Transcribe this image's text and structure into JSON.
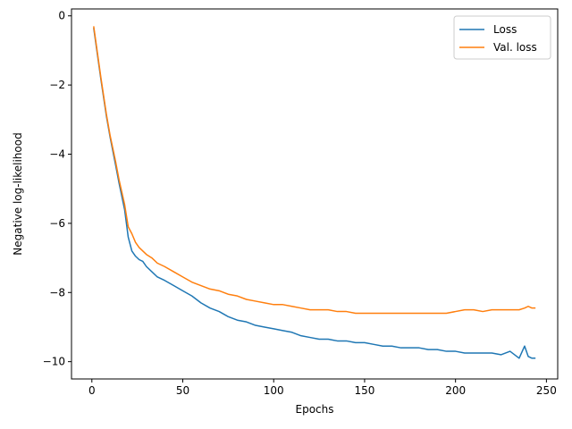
{
  "chart_data": {
    "type": "line",
    "title": "",
    "xlabel": "Epochs",
    "ylabel": "Negative log-likelihood",
    "xlim": [
      -11.2,
      256.2
    ],
    "ylim": [
      -10.5,
      0.2
    ],
    "xticks": [
      0,
      50,
      100,
      150,
      200,
      250
    ],
    "yticks": [
      0,
      -2,
      -4,
      -6,
      -8,
      -10
    ],
    "xtick_labels": [
      "0",
      "50",
      "100",
      "150",
      "200",
      "250"
    ],
    "ytick_labels": [
      "0",
      "−2",
      "−4",
      "−6",
      "−8",
      "−10"
    ],
    "grid": false,
    "legend_position": "top-right",
    "series": [
      {
        "name": "Loss",
        "color": "#1f77b4",
        "x": [
          1,
          3,
          5,
          8,
          10,
          13,
          15,
          18,
          20,
          22,
          24,
          26,
          28,
          30,
          33,
          36,
          40,
          45,
          50,
          55,
          60,
          65,
          70,
          75,
          80,
          85,
          90,
          95,
          100,
          105,
          110,
          115,
          120,
          125,
          130,
          135,
          140,
          145,
          150,
          155,
          160,
          165,
          170,
          175,
          180,
          185,
          190,
          195,
          200,
          205,
          210,
          215,
          220,
          225,
          230,
          235,
          238,
          240,
          242,
          244
        ],
        "y": [
          -0.35,
          -1.1,
          -1.85,
          -2.9,
          -3.5,
          -4.3,
          -4.85,
          -5.6,
          -6.4,
          -6.8,
          -6.95,
          -7.05,
          -7.1,
          -7.25,
          -7.4,
          -7.55,
          -7.65,
          -7.8,
          -7.95,
          -8.1,
          -8.3,
          -8.45,
          -8.55,
          -8.7,
          -8.8,
          -8.85,
          -8.95,
          -9.0,
          -9.05,
          -9.1,
          -9.15,
          -9.25,
          -9.3,
          -9.35,
          -9.35,
          -9.4,
          -9.4,
          -9.45,
          -9.45,
          -9.5,
          -9.55,
          -9.55,
          -9.6,
          -9.6,
          -9.6,
          -9.65,
          -9.65,
          -9.7,
          -9.7,
          -9.75,
          -9.75,
          -9.75,
          -9.75,
          -9.8,
          -9.7,
          -9.9,
          -9.55,
          -9.85,
          -9.9,
          -9.9
        ]
      },
      {
        "name": "Val. loss",
        "color": "#ff7f0e",
        "x": [
          1,
          3,
          5,
          8,
          10,
          13,
          15,
          18,
          20,
          22,
          24,
          26,
          28,
          30,
          33,
          36,
          40,
          45,
          50,
          55,
          60,
          65,
          70,
          75,
          80,
          85,
          90,
          95,
          100,
          105,
          110,
          115,
          120,
          125,
          130,
          135,
          140,
          145,
          150,
          155,
          160,
          165,
          170,
          175,
          180,
          185,
          190,
          195,
          200,
          205,
          210,
          215,
          220,
          225,
          230,
          235,
          238,
          240,
          242,
          244
        ],
        "y": [
          -0.3,
          -1.05,
          -1.8,
          -2.85,
          -3.45,
          -4.2,
          -4.75,
          -5.45,
          -6.1,
          -6.3,
          -6.55,
          -6.7,
          -6.8,
          -6.9,
          -7.0,
          -7.15,
          -7.25,
          -7.4,
          -7.55,
          -7.7,
          -7.8,
          -7.9,
          -7.95,
          -8.05,
          -8.1,
          -8.2,
          -8.25,
          -8.3,
          -8.35,
          -8.35,
          -8.4,
          -8.45,
          -8.5,
          -8.5,
          -8.5,
          -8.55,
          -8.55,
          -8.6,
          -8.6,
          -8.6,
          -8.6,
          -8.6,
          -8.6,
          -8.6,
          -8.6,
          -8.6,
          -8.6,
          -8.6,
          -8.55,
          -8.5,
          -8.5,
          -8.55,
          -8.5,
          -8.5,
          -8.5,
          -8.5,
          -8.45,
          -8.4,
          -8.45,
          -8.45
        ]
      }
    ]
  }
}
